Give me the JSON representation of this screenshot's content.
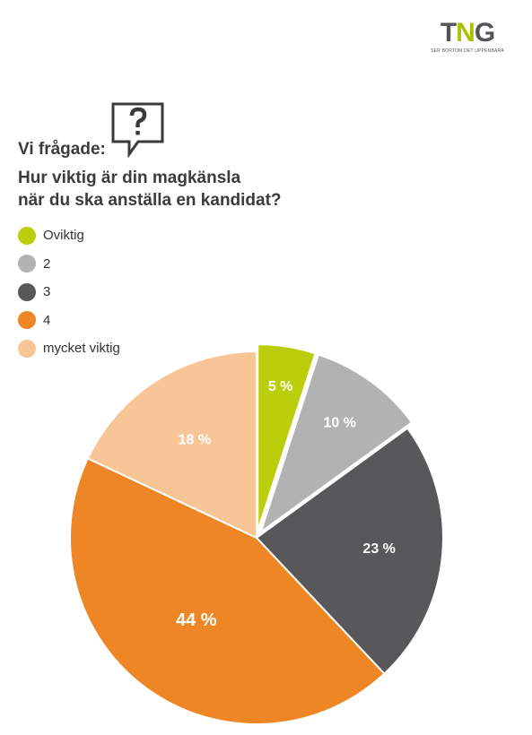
{
  "brand": {
    "logo_text_t": "T",
    "logo_text_n": "N",
    "logo_text_g": "G",
    "tagline": "SER BORTOM DET UPPENBARA"
  },
  "header": {
    "intro": "Vi frågade:",
    "question_line1": "Hur viktig är din magkänsla",
    "question_line2": "när du ska anställa en kandidat?"
  },
  "colors": {
    "oviktig": "#bccd0b",
    "two": "#b2b2b3",
    "three": "#58585a",
    "four": "#ef8625",
    "mycket": "#f8c597",
    "title": "#3b3b3b"
  },
  "chart_data": {
    "type": "pie",
    "title": "Hur viktig är din magkänsla när du ska anställa en kandidat?",
    "legend_position": "top-left",
    "categories": [
      "Oviktig",
      "2",
      "3",
      "4",
      "mycket viktig"
    ],
    "values": [
      5,
      10,
      23,
      44,
      18
    ],
    "labels": [
      "5 %",
      "10 %",
      "23 %",
      "44 %",
      "18 %"
    ],
    "colors": [
      "#bccd0b",
      "#b2b2b3",
      "#58585a",
      "#ef8625",
      "#f8c597"
    ],
    "exploded": [
      true,
      true,
      false,
      false,
      false
    ]
  }
}
